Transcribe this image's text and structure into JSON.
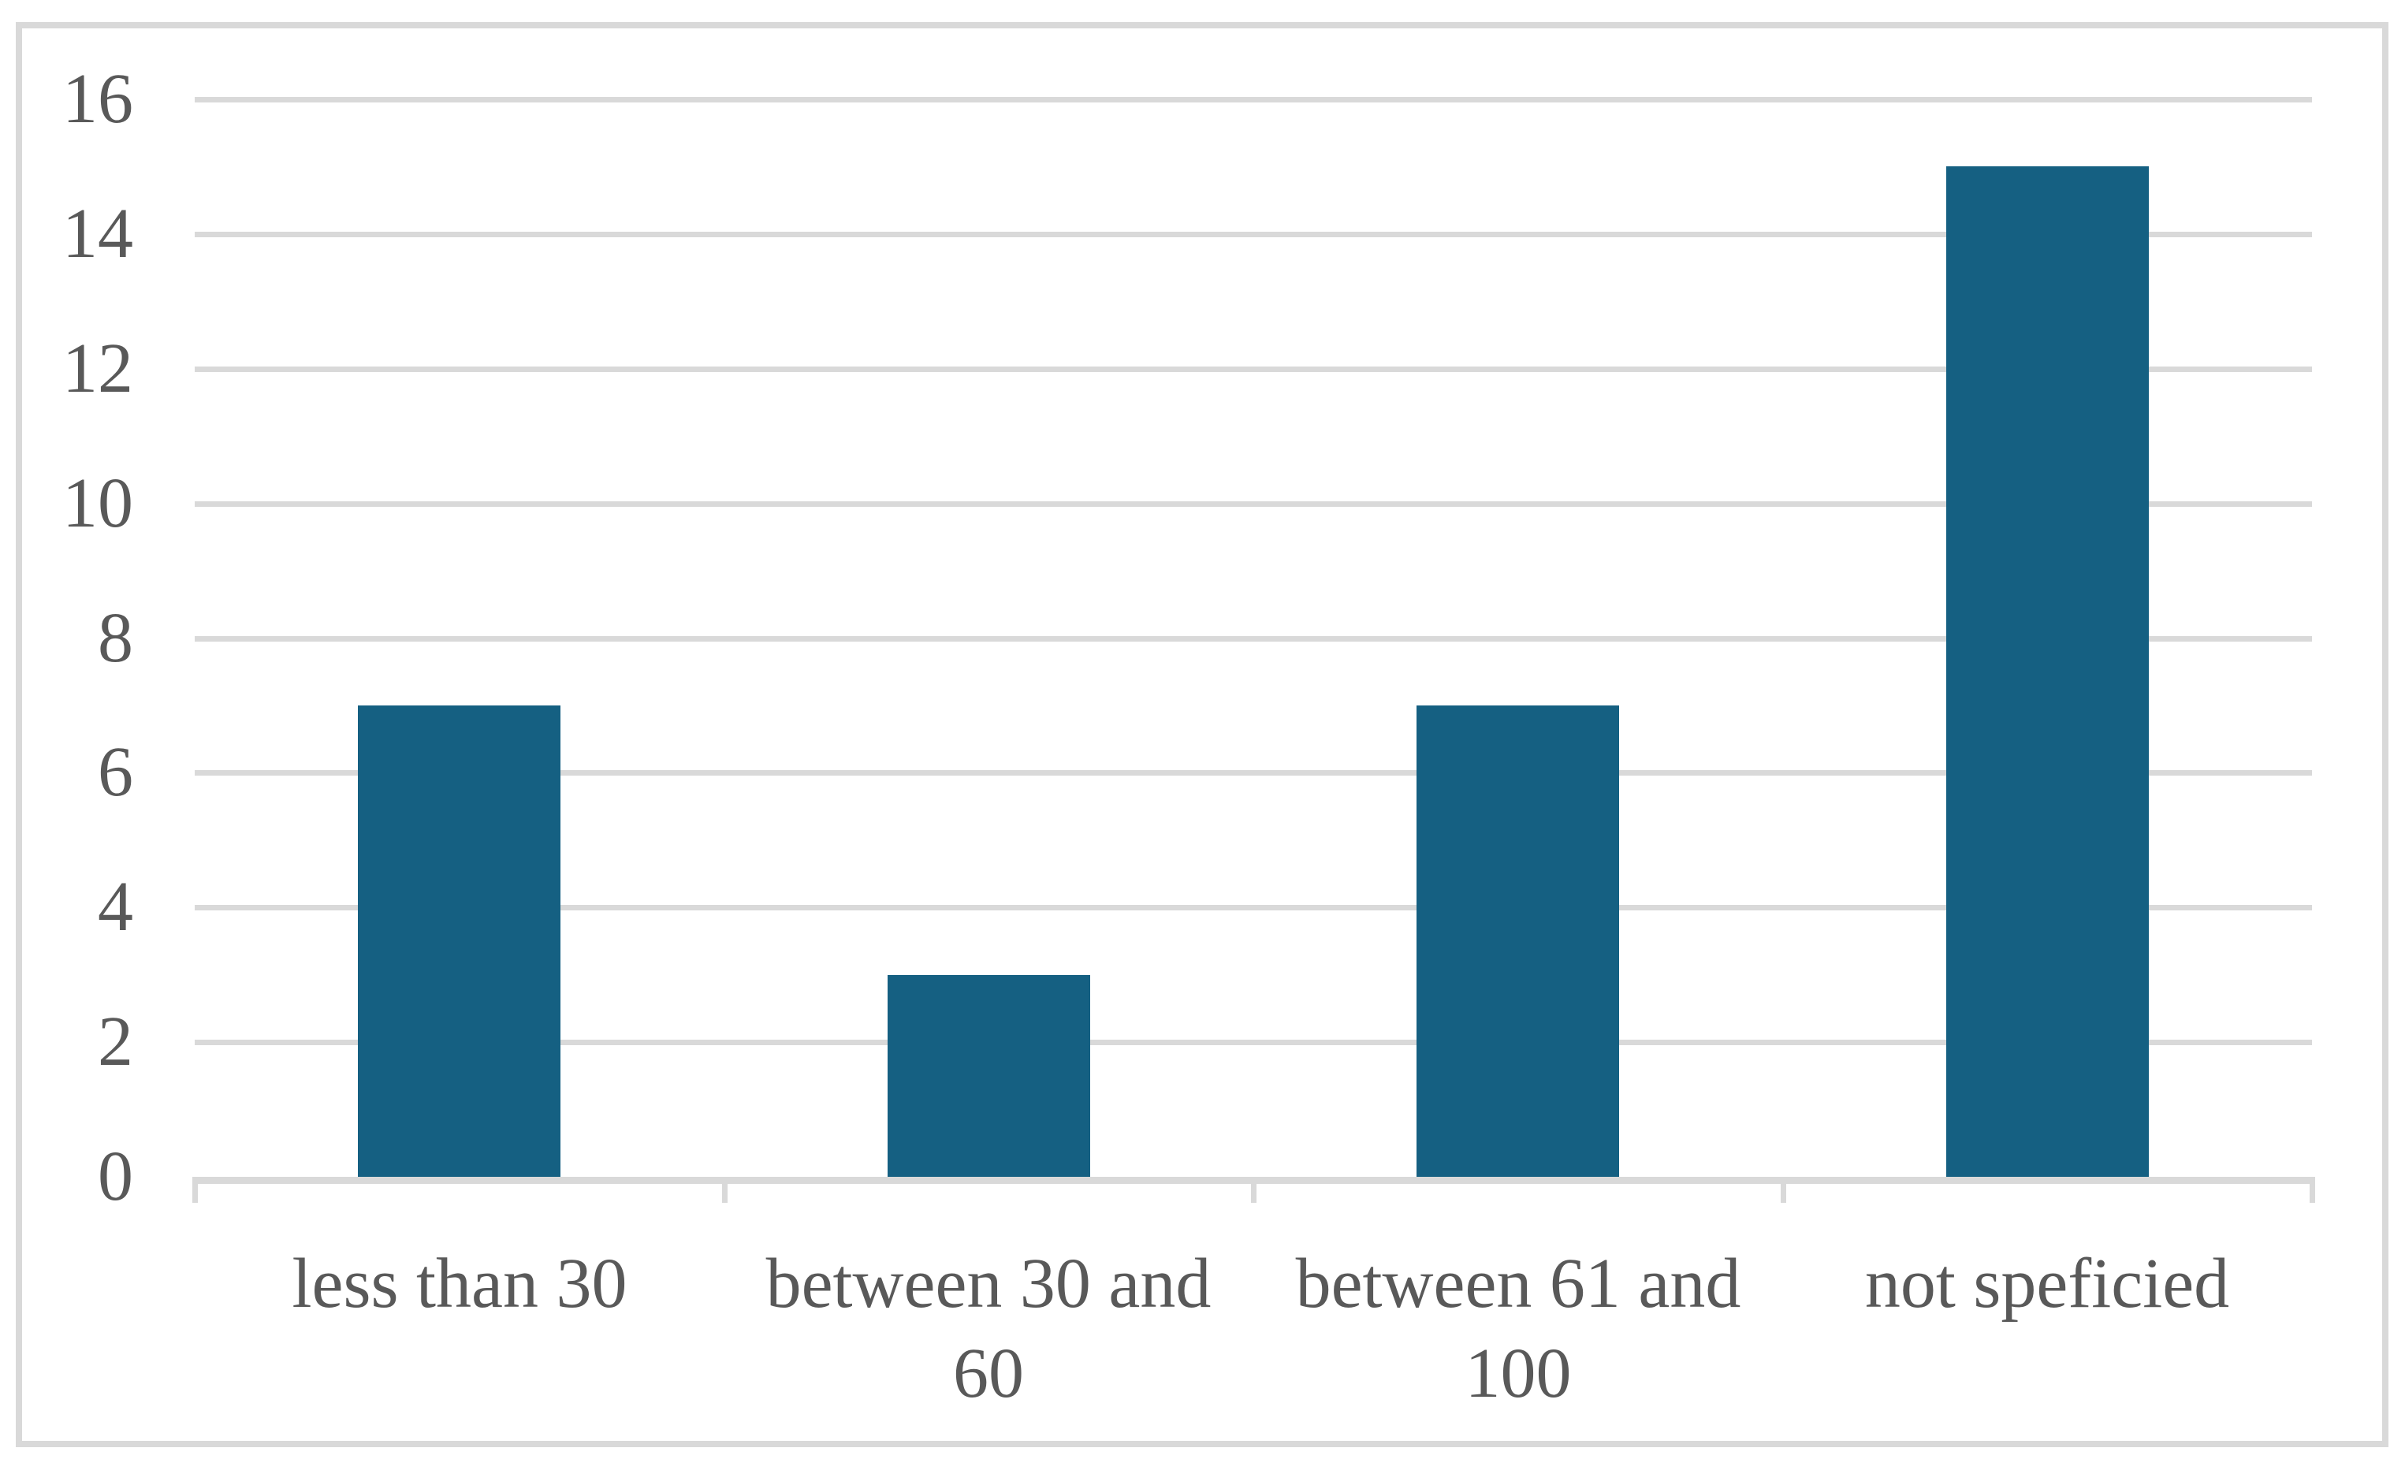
{
  "chart_data": {
    "type": "bar",
    "categories": [
      "less than 30",
      "between 30 and 60",
      "between 61 and 100",
      "not speficied"
    ],
    "values": [
      7,
      3,
      7,
      15
    ],
    "title": "",
    "xlabel": "",
    "ylabel": "",
    "ylim": [
      0,
      16
    ],
    "ytick_step": 2,
    "grid": true,
    "legend": "none",
    "colors": {
      "bar": "#156082",
      "gridline": "#d9d9d9",
      "axis_line": "#d9d9d9",
      "tick_mark": "#d9d9d9",
      "label_text": "#595959",
      "chart_border": "#d9d9d9",
      "background": "#ffffff"
    }
  }
}
